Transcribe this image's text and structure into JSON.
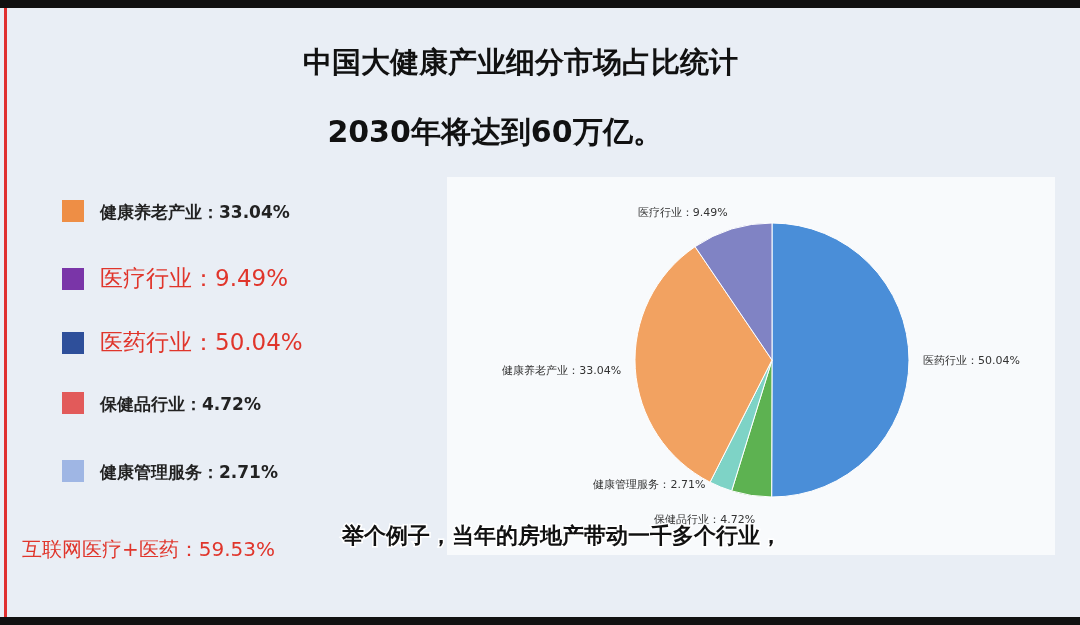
{
  "chart_data": [
    {
      "type": "pie",
      "title": "中国大健康产业细分市场占比统计",
      "subtitle": "2030年将达到60万亿。",
      "categories": [
        "医药行业",
        "保健品行业",
        "健康管理服务",
        "健康养老产业",
        "医疗行业"
      ],
      "values": [
        50.04,
        4.72,
        2.71,
        33.04,
        9.49
      ],
      "value_labels": [
        "50.04%",
        "4.72%",
        "2.71%",
        "33.04%",
        "9.49%"
      ],
      "colors": [
        "#4a8ed8",
        "#5db251",
        "#7ed3c6",
        "#f2a261",
        "#8083c4"
      ],
      "annotations": [
        "举个例子，当年的房地产带动一千多个行业，"
      ]
    },
    {
      "type": "other",
      "annotations": [
        "健康养老产业：33.04%",
        "医疗行业：9.49%",
        "医药行业：50.04%",
        "保健品行业：4.72%",
        "健康管理服务：2.71%",
        "互联网医疗+医药：59.53%"
      ],
      "colors": [
        "#ee8e45",
        "#7a35a8",
        "#2e4f9a",
        "#e25a5a",
        "#9fb6e4"
      ]
    }
  ]
}
